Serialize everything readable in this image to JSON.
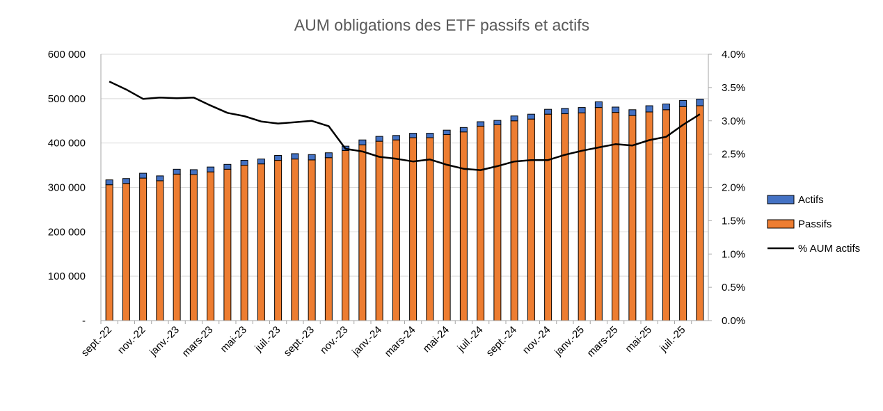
{
  "chart_data": {
    "type": "bar",
    "stacked": true,
    "title": "AUM obligations des ETF passifs et actifs",
    "xlabel": "",
    "ylabel": "",
    "y2label": "",
    "categories": [
      "sept.-22",
      "oct.-22",
      "nov.-22",
      "déc.-22",
      "janv.-23",
      "févr.-23",
      "mars-23",
      "avr.-23",
      "mai-23",
      "juin-23",
      "juil.-23",
      "août-23",
      "sept.-23",
      "oct.-23",
      "nov.-23",
      "déc.-23",
      "janv.-24",
      "févr.-24",
      "mars-24",
      "avr.-24",
      "mai-24",
      "juin-24",
      "juil.-24",
      "août-24",
      "sept.-24",
      "oct.-24",
      "nov.-24",
      "déc.-24",
      "janv.-25",
      "févr.-25",
      "mars-25",
      "avr.-25",
      "mai-25",
      "juin-25",
      "juil.-25",
      "août-25"
    ],
    "x_tick_labels": [
      "sept.-22",
      "",
      "nov.-22",
      "",
      "janv.-23",
      "",
      "mars-23",
      "",
      "mai-23",
      "",
      "juil.-23",
      "",
      "sept.-23",
      "",
      "nov.-23",
      "",
      "janv.-24",
      "",
      "mars-24",
      "",
      "mai-24",
      "",
      "juil.-24",
      "",
      "sept.-24",
      "",
      "nov.-24",
      "",
      "janv.-25",
      "",
      "mars-25",
      "",
      "mai-25",
      "",
      "juil.-25",
      ""
    ],
    "y_ticks": [
      "-",
      "100 000",
      "200 000",
      "300 000",
      "400 000",
      "500 000",
      "600 000"
    ],
    "y2_ticks": [
      "0.0%",
      "0.5%",
      "1.0%",
      "1.5%",
      "2.0%",
      "2.5%",
      "3.0%",
      "3.5%",
      "4.0%"
    ],
    "ylim": [
      0,
      600000
    ],
    "y2lim": [
      0,
      4.0
    ],
    "grid": true,
    "legend_position": "right",
    "series": [
      {
        "name": "Passifs",
        "kind": "bar",
        "axis": "left",
        "color": "#ed7d31",
        "values": [
          306000,
          309000,
          321000,
          315000,
          330000,
          329000,
          335000,
          341000,
          350000,
          353000,
          361000,
          364000,
          362000,
          367000,
          383000,
          396000,
          404000,
          407000,
          412000,
          412000,
          419000,
          425000,
          438000,
          441000,
          450000,
          454000,
          465000,
          466000,
          468000,
          480000,
          469000,
          462000,
          470000,
          475000,
          482000,
          484000
        ]
      },
      {
        "name": "Actifs",
        "kind": "bar",
        "axis": "left",
        "color": "#4472c4",
        "values": [
          11000,
          11000,
          11000,
          11000,
          11000,
          11000,
          11000,
          11000,
          11000,
          11000,
          11000,
          12000,
          12000,
          11000,
          10000,
          11000,
          11000,
          10000,
          10000,
          10000,
          10000,
          10000,
          10000,
          10000,
          11000,
          11000,
          11000,
          12000,
          12000,
          13000,
          12000,
          13000,
          14000,
          13000,
          14000,
          15000
        ]
      },
      {
        "name": "% AUM actifs",
        "kind": "line",
        "axis": "right",
        "color": "#000000",
        "values": [
          3.59,
          3.47,
          3.33,
          3.35,
          3.34,
          3.35,
          3.23,
          3.12,
          3.07,
          2.99,
          2.96,
          2.98,
          3.0,
          2.92,
          2.58,
          2.54,
          2.46,
          2.43,
          2.39,
          2.42,
          2.34,
          2.28,
          2.26,
          2.32,
          2.39,
          2.41,
          2.41,
          2.49,
          2.55,
          2.6,
          2.65,
          2.63,
          2.71,
          2.76,
          2.94,
          3.1
        ]
      }
    ]
  }
}
